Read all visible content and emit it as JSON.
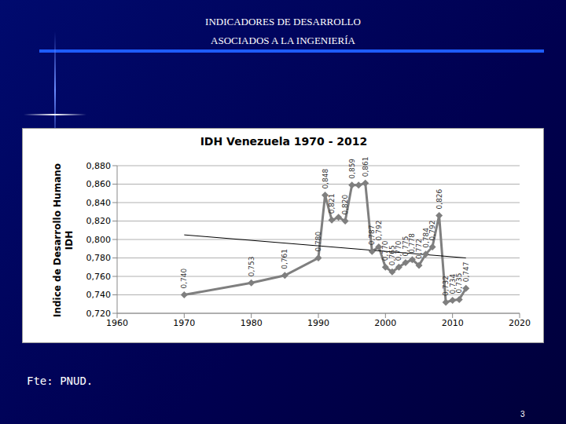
{
  "header": {
    "title": "INDICADORES DE DESARROLLO",
    "subtitle": "ASOCIADOS A LA INGENIERÍA"
  },
  "source": "Fte: PNUD.",
  "page": "3",
  "chart_data": {
    "type": "line",
    "title": "IDH Venezuela 1970 - 2012",
    "y_label": [
      "Indice de Desarrollo Humano",
      "IDH"
    ],
    "x": [
      1970,
      1980,
      1985,
      1990,
      1991,
      1992,
      1993,
      1994,
      1995,
      1996,
      1997,
      1998,
      1999,
      2000,
      2001,
      2002,
      2003,
      2004,
      2005,
      2006,
      2007,
      2008,
      2009,
      2010,
      2011,
      2012
    ],
    "values": [
      0.74,
      0.753,
      0.761,
      0.78,
      0.848,
      0.821,
      0.824,
      0.82,
      0.859,
      0.859,
      0.861,
      0.787,
      0.792,
      0.77,
      0.765,
      0.77,
      0.775,
      0.778,
      0.772,
      0.784,
      0.792,
      0.826,
      0.732,
      0.734,
      0.735,
      0.747
    ],
    "value_labels": [
      "0,740",
      "0,753",
      "0,761",
      "0,780",
      "0,848",
      "0,821",
      null,
      "0,820",
      "0,859",
      null,
      "0,861",
      "0,787",
      "0,792",
      "0,770",
      "0,765",
      "0,770",
      "0,775",
      "0,778",
      "0,772",
      "0,784",
      "0,792",
      "0,826",
      "0,732",
      "0,734",
      "0,735",
      "0,747"
    ],
    "data_labels": true,
    "color": "#7f7f7f",
    "marker": "diamond",
    "trendline": {
      "x": [
        1970,
        2012
      ],
      "values": [
        0.805,
        0.78
      ],
      "color": "#000000"
    },
    "xlim": [
      1960,
      2020
    ],
    "xticks": [
      1960,
      1970,
      1980,
      1990,
      2000,
      2010,
      2020
    ],
    "ylim": [
      0.72,
      0.88
    ],
    "yticks": [
      {
        "value": 0.72,
        "label": "0,720"
      },
      {
        "value": 0.74,
        "label": "0,740"
      },
      {
        "value": 0.76,
        "label": "0,760"
      },
      {
        "value": 0.78,
        "label": "0,780"
      },
      {
        "value": 0.8,
        "label": "0,800"
      },
      {
        "value": 0.82,
        "label": "0,820"
      },
      {
        "value": 0.84,
        "label": "0,840"
      },
      {
        "value": 0.86,
        "label": "0,860"
      },
      {
        "value": 0.88,
        "label": "0,880"
      }
    ],
    "grid": true
  }
}
